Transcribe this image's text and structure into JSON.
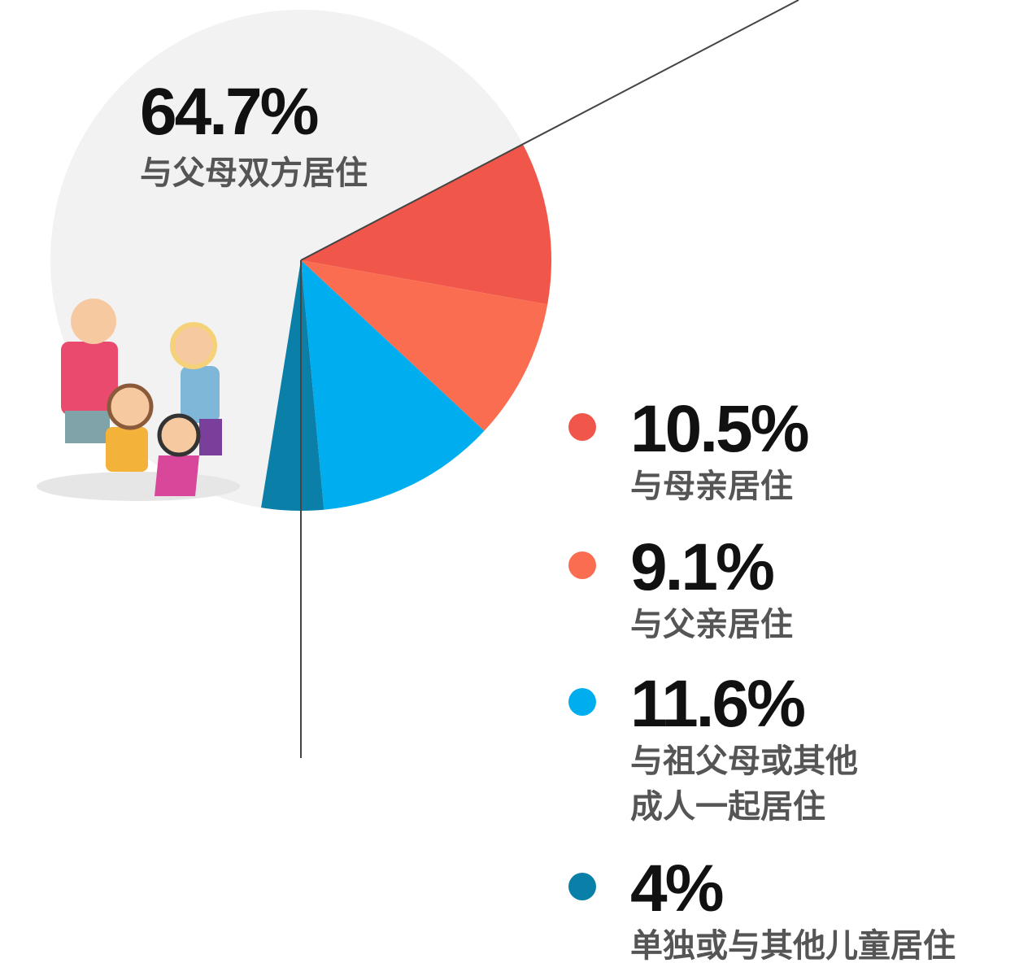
{
  "chart_data": {
    "type": "pie",
    "categories": [
      "与父母双方居住",
      "与母亲居住",
      "与父亲居住",
      "与祖父母或其他\n成人一起居住",
      "单独或与其他儿童居住"
    ],
    "values": [
      64.7,
      10.5,
      9.1,
      11.6,
      4
    ],
    "value_labels": [
      "64.7%",
      "10.5%",
      "9.1%",
      "11.6%",
      "4%"
    ],
    "colors": [
      "#f2f2f2",
      "#f0574a",
      "#fb6d51",
      "#00aeef",
      "#0a7fa8"
    ]
  }
}
